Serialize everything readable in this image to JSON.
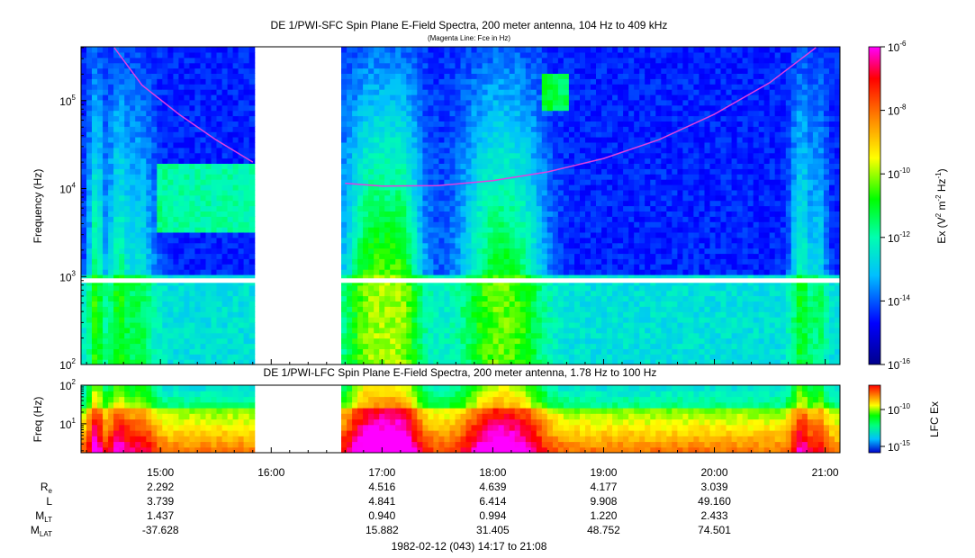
{
  "chart_data": [
    {
      "type": "heatmap",
      "title": "DE 1/PWI-SFC  Spin Plane E-Field Spectra, 200 meter antenna, 104 Hz to 409 kHz",
      "subtitle": "(Magenta Line: Fce in Hz)",
      "ylabel": "Frequency (Hz)",
      "yscale": "log",
      "ylim": [
        100,
        409000
      ],
      "y_ticks": [
        {
          "value": 100,
          "base": "10",
          "exp": "2"
        },
        {
          "value": 1000,
          "base": "10",
          "exp": "3"
        },
        {
          "value": 10000,
          "base": "10",
          "exp": "4"
        },
        {
          "value": 100000,
          "base": "10",
          "exp": "5"
        }
      ],
      "xlim": [
        "14:17",
        "21:08"
      ],
      "data_gaps": [
        [
          "15:52",
          "16:37"
        ]
      ],
      "fce_line": {
        "segment1": [
          [
            "14:35",
            400000
          ],
          [
            "14:50",
            150000
          ],
          [
            "15:10",
            70000
          ],
          [
            "15:30",
            36000
          ],
          [
            "15:50",
            20000
          ]
        ],
        "segment2": [
          [
            "16:40",
            11500
          ],
          [
            "17:00",
            10700
          ],
          [
            "17:30",
            10800
          ],
          [
            "18:00",
            12300
          ],
          [
            "18:30",
            15500
          ],
          [
            "19:00",
            22000
          ],
          [
            "19:30",
            36000
          ],
          [
            "20:00",
            70000
          ],
          [
            "20:30",
            160000
          ],
          [
            "20:55",
            400000
          ]
        ],
        "color": "#e040e0"
      },
      "colorbar": {
        "label_base": "Ex (V",
        "label_sup1": "2",
        "label_mid": " m",
        "label_sup2": "-2",
        "label_mid2": " Hz",
        "label_sup3": "-1",
        "label_end": ")",
        "scale": "log",
        "range": [
          1e-16,
          1e-06
        ],
        "ticks": [
          {
            "base": "10",
            "exp": "-6"
          },
          {
            "base": "10",
            "exp": "-8"
          },
          {
            "base": "10",
            "exp": "-10"
          },
          {
            "base": "10",
            "exp": "-12"
          },
          {
            "base": "10",
            "exp": "-14"
          },
          {
            "base": "10",
            "exp": "-16"
          }
        ],
        "colors": [
          "#00008b",
          "#0000ff",
          "#00bfff",
          "#00ffb0",
          "#00ff00",
          "#ffff00",
          "#ff8000",
          "#ff0000",
          "#ff00ff"
        ]
      }
    },
    {
      "type": "heatmap",
      "title": "DE 1/PWI-LFC  Spin Plane E-Field Spectra, 200 meter antenna, 1.78 Hz to 100 Hz",
      "ylabel": "Freq (Hz)",
      "yscale": "log",
      "ylim": [
        1.78,
        100
      ],
      "y_ticks": [
        {
          "value": 10,
          "base": "10",
          "exp": "1"
        },
        {
          "value": 100,
          "base": "10",
          "exp": "2"
        }
      ],
      "colorbar": {
        "label": "LFC Ex",
        "ticks": [
          {
            "base": "10",
            "exp": "-10"
          },
          {
            "base": "10",
            "exp": "-15"
          }
        ]
      }
    }
  ],
  "time_axis": {
    "ticks": [
      "15:00",
      "16:00",
      "17:00",
      "18:00",
      "19:00",
      "20:00",
      "21:00"
    ],
    "ephemeris_labels": [
      {
        "base": "R",
        "sub": "e"
      },
      {
        "base": "L",
        "sub": ""
      },
      {
        "base": "M",
        "sub": "LT"
      },
      {
        "base": "M",
        "sub": "LAT"
      }
    ],
    "ephemeris_columns": [
      {
        "time": "15:00",
        "values": [
          "2.292",
          "3.739",
          "1.437",
          "-37.628"
        ]
      },
      {
        "time": "17:00",
        "values": [
          "4.516",
          "4.841",
          "0.940",
          "15.882"
        ]
      },
      {
        "time": "18:00",
        "values": [
          "4.639",
          "6.414",
          "0.994",
          "31.405"
        ]
      },
      {
        "time": "19:00",
        "values": [
          "4.177",
          "9.908",
          "1.220",
          "48.752"
        ]
      },
      {
        "time": "20:00",
        "values": [
          "3.039",
          "49.160",
          "2.433",
          "74.501"
        ]
      }
    ],
    "footer": "1982-02-12 (043) 14:17 to 21:08"
  }
}
